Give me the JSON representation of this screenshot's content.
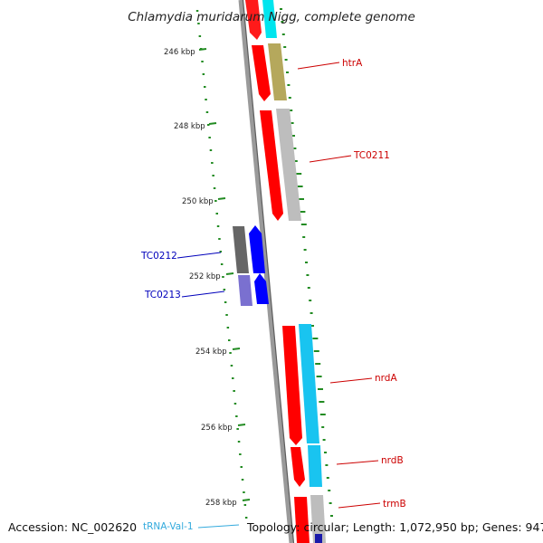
{
  "title": "Chlamydia muridarum Nigg, complete genome",
  "footer": {
    "accession": "Accession: NC_002620",
    "trna_label": "tRNA-Val-1",
    "summary": "Topology: circular; Length: 1,072,950 bp; Genes: 947"
  },
  "scale_ticks": [
    "246 kbp",
    "248 kbp",
    "250 kbp",
    "252 kbp",
    "254 kbp",
    "256 kbp",
    "258 kbp"
  ],
  "genes": [
    {
      "label": "htrA"
    },
    {
      "label": "TC0211"
    },
    {
      "label": "TC0212"
    },
    {
      "label": "TC0213"
    },
    {
      "label": "nrdA"
    },
    {
      "label": "nrdB"
    },
    {
      "label": "trmB"
    }
  ],
  "colors": {
    "forward_gene_label": "#cc0000",
    "reverse_gene_label": "#0000bb",
    "trna_label": "#33aadd",
    "cds_forward": "#ff0000",
    "cds_reverse": "#0000ff",
    "backbone": "#888888",
    "tick_marks": "#228b22"
  }
}
